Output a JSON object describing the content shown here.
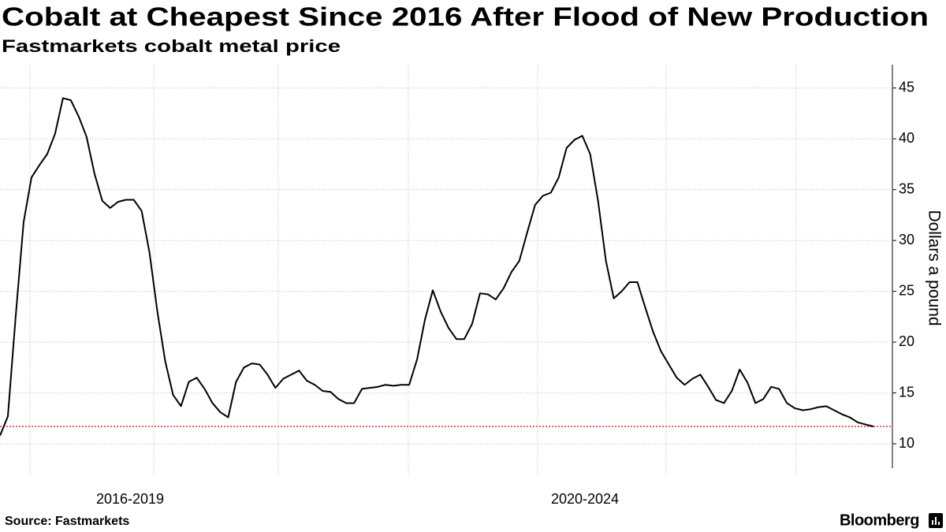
{
  "chart_data": {
    "type": "line",
    "title": "Cobalt at Cheapest Since 2016 After Flood of New Production",
    "subtitle": "Fastmarkets cobalt metal price",
    "y_axis_label": "Dollars a pound",
    "period_labels": [
      "2016-2019",
      "2020-2024"
    ],
    "source": "Source: Fastmarkets",
    "brand": "Bloomberg",
    "color": "#000000",
    "values": [
      10.8,
      12.7,
      22.6,
      31.8,
      36.2,
      37.4,
      38.5,
      40.5,
      44.0,
      43.8,
      42.2,
      40.2,
      36.6,
      33.9,
      33.2,
      33.8,
      34.0,
      34.0,
      32.9,
      28.8,
      23.0,
      18.1,
      14.8,
      13.7,
      16.1,
      16.5,
      15.4,
      14.0,
      13.1,
      12.6,
      16.1,
      17.5,
      17.9,
      17.8,
      16.8,
      15.5,
      16.4,
      16.8,
      17.2,
      16.2,
      15.8,
      15.2,
      15.1,
      14.4,
      14.0,
      14.0,
      15.4,
      15.5,
      15.6,
      15.8,
      15.7,
      15.8,
      15.8,
      18.3,
      22.2,
      25.1,
      23.0,
      21.4,
      20.3,
      20.3,
      21.8,
      24.8,
      24.7,
      24.2,
      25.3,
      26.9,
      28.0,
      30.8,
      33.5,
      34.4,
      34.7,
      36.2,
      39.1,
      39.9,
      40.3,
      38.5,
      33.9,
      28.0,
      24.3,
      25.0,
      25.9,
      25.9,
      23.4,
      21.0,
      19.1,
      17.8,
      16.5,
      15.8,
      16.4,
      16.8,
      15.6,
      14.3,
      14.0,
      15.2,
      17.3,
      16.0,
      14.0,
      14.4,
      15.6,
      15.4,
      14.0,
      13.5,
      13.3,
      13.4,
      13.6,
      13.7,
      13.3,
      12.9,
      12.6,
      12.1,
      11.9,
      11.7
    ],
    "ylim": [
      7.6,
      47.3
    ],
    "yticks": [
      10,
      15,
      20,
      25,
      30,
      35,
      40,
      45
    ],
    "grid": true,
    "reference_line": {
      "value": 11.7,
      "color": "#e03030"
    }
  }
}
